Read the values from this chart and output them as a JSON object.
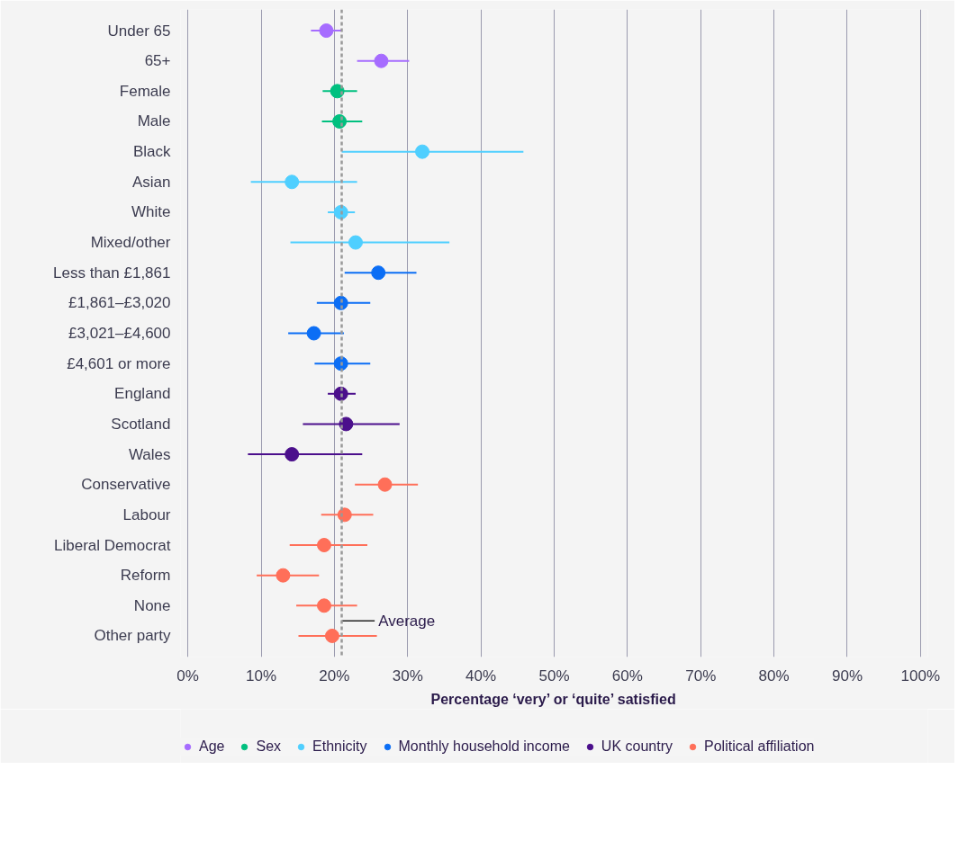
{
  "chart_data": {
    "type": "scatter",
    "orientation": "horizontal",
    "categories": [
      "Under 65",
      "65+",
      "Female",
      "Male",
      "Black",
      "Asian",
      "White",
      "Mixed/other",
      "Less than £1,861",
      "£1,861–£3,020",
      "£3,021–£4,600",
      "£4,601 or more",
      "England",
      "Scotland",
      "Wales",
      "Conservative",
      "Labour",
      "Liberal Democrat",
      "Reform",
      "None",
      "Other party"
    ],
    "series": [
      {
        "name": "Age",
        "color": "#a66cff",
        "values": [
          18.9,
          26.4,
          null,
          null,
          null,
          null,
          null,
          null,
          null,
          null,
          null,
          null,
          null,
          null,
          null,
          null,
          null,
          null,
          null,
          null,
          null
        ],
        "errors": [
          [
            16.8,
            21.0
          ],
          [
            23.1,
            30.2
          ],
          null,
          null,
          null,
          null,
          null,
          null,
          null,
          null,
          null,
          null,
          null,
          null,
          null,
          null,
          null,
          null,
          null,
          null,
          null
        ]
      },
      {
        "name": "Sex",
        "color": "#00c07f",
        "values": [
          null,
          null,
          20.4,
          20.7,
          null,
          null,
          null,
          null,
          null,
          null,
          null,
          null,
          null,
          null,
          null,
          null,
          null,
          null,
          null,
          null,
          null
        ],
        "errors": [
          null,
          null,
          [
            18.4,
            23.1
          ],
          [
            18.3,
            23.8
          ],
          null,
          null,
          null,
          null,
          null,
          null,
          null,
          null,
          null,
          null,
          null,
          null,
          null,
          null,
          null,
          null,
          null
        ]
      },
      {
        "name": "Ethnicity",
        "color": "#4fcfff",
        "values": [
          null,
          null,
          null,
          null,
          32.0,
          14.2,
          20.9,
          22.9,
          null,
          null,
          null,
          null,
          null,
          null,
          null,
          null,
          null,
          null,
          null,
          null,
          null
        ],
        "errors": [
          null,
          null,
          null,
          null,
          [
            21.0,
            45.8
          ],
          [
            8.6,
            23.1
          ],
          [
            19.1,
            22.8
          ],
          [
            14.0,
            35.7
          ],
          null,
          null,
          null,
          null,
          null,
          null,
          null,
          null,
          null,
          null,
          null,
          null,
          null
        ]
      },
      {
        "name": "Monthly household income",
        "color": "#0b6ef5",
        "values": [
          null,
          null,
          null,
          null,
          null,
          null,
          null,
          null,
          26.0,
          20.9,
          17.2,
          20.9,
          null,
          null,
          null,
          null,
          null,
          null,
          null,
          null,
          null
        ],
        "errors": [
          null,
          null,
          null,
          null,
          null,
          null,
          null,
          null,
          [
            21.4,
            31.2
          ],
          [
            17.6,
            24.9
          ],
          [
            13.7,
            21.3
          ],
          [
            17.3,
            24.9
          ],
          null,
          null,
          null,
          null,
          null,
          null,
          null,
          null,
          null
        ]
      },
      {
        "name": "UK country",
        "color": "#4b0f8c",
        "values": [
          null,
          null,
          null,
          null,
          null,
          null,
          null,
          null,
          null,
          null,
          null,
          null,
          20.9,
          21.6,
          14.2,
          null,
          null,
          null,
          null,
          null,
          null
        ],
        "errors": [
          null,
          null,
          null,
          null,
          null,
          null,
          null,
          null,
          null,
          null,
          null,
          null,
          [
            19.1,
            22.9
          ],
          [
            15.7,
            28.9
          ],
          [
            8.2,
            23.8
          ],
          null,
          null,
          null,
          null,
          null,
          null
        ]
      },
      {
        "name": "Political affiliation",
        "color": "#ff6f59",
        "values": [
          null,
          null,
          null,
          null,
          null,
          null,
          null,
          null,
          null,
          null,
          null,
          null,
          null,
          null,
          null,
          26.9,
          21.4,
          18.6,
          13.0,
          18.6,
          19.7
        ],
        "errors": [
          null,
          null,
          null,
          null,
          null,
          null,
          null,
          null,
          null,
          null,
          null,
          null,
          null,
          null,
          null,
          [
            22.8,
            31.4
          ],
          [
            18.2,
            25.3
          ],
          [
            13.9,
            24.5
          ],
          [
            9.4,
            17.9
          ],
          [
            14.8,
            23.1
          ],
          [
            15.1,
            25.8
          ]
        ]
      }
    ],
    "xlabel": "Percentage ‘very’ or ‘quite’ satisfied",
    "xlim": [
      0,
      100
    ],
    "xticks": [
      {
        "value": 0,
        "label": "0%"
      },
      {
        "value": 10,
        "label": "10%"
      },
      {
        "value": 20,
        "label": "20%"
      },
      {
        "value": 30,
        "label": "30%"
      },
      {
        "value": 40,
        "label": "40%"
      },
      {
        "value": 50,
        "label": "50%"
      },
      {
        "value": 60,
        "label": "60%"
      },
      {
        "value": 70,
        "label": "70%"
      },
      {
        "value": 80,
        "label": "80%"
      },
      {
        "value": 90,
        "label": "90%"
      },
      {
        "value": 100,
        "label": "100%"
      }
    ],
    "ref_lines": [
      {
        "axis": "x",
        "value": 21.0,
        "label": "Average",
        "color": "#999999",
        "line_style": "dashed"
      }
    ],
    "grid": "x",
    "legend": "bottom",
    "marker": "circle"
  }
}
